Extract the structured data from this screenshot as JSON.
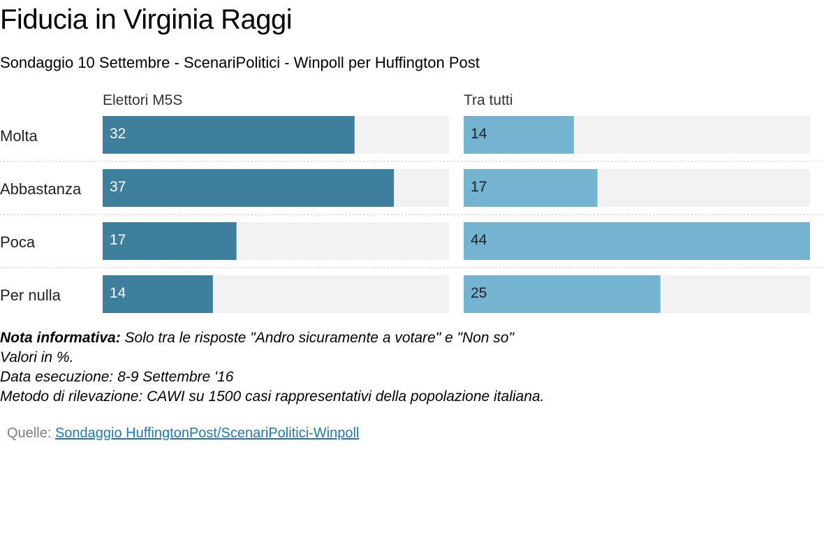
{
  "title": "Fiducia in Virginia Raggi",
  "subtitle": "Sondaggio 10 Settembre - ScenariPolitici - Winpoll per Huffington Post",
  "chart_data": {
    "type": "bar",
    "orientation": "horizontal",
    "categories": [
      "Molta",
      "Abbastanza",
      "Poca",
      "Per nulla"
    ],
    "series": [
      {
        "name": "Elettori M5S",
        "values": [
          32,
          37,
          17,
          14
        ],
        "color": "#3d7f9c"
      },
      {
        "name": "Tra tutti",
        "values": [
          14,
          17,
          44,
          25
        ],
        "color": "#75b4d1"
      }
    ],
    "xlim": [
      0,
      44
    ],
    "track_color": "#f2f2f2",
    "separator": "dotted"
  },
  "notes": {
    "bold_label": "Nota informativa:",
    "line1": " Solo tra le risposte \"Andro sicuramente a votare\" e \"Non so\"",
    "line2": "Valori in %.",
    "line3": "Data esecuzione: 8-9 Settembre '16",
    "line4": "Metodo di rilevazione: CAWI su 1500 casi rappresentativi della popolazione italiana."
  },
  "source": {
    "label": "Quelle:",
    "link_text": "Sondaggio HuffingtonPost/ScenariPolitici-Winpoll"
  }
}
